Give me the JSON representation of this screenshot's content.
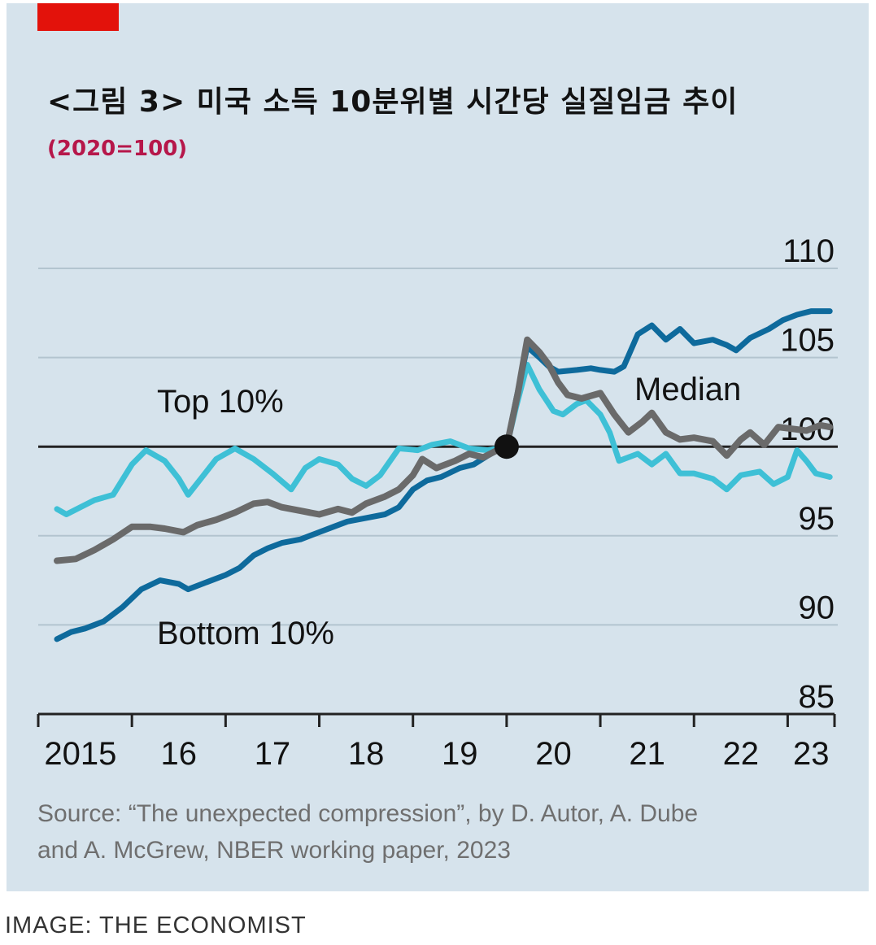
{
  "header": {
    "title": "<그림 3> 미국 소득 10분위별 시간당 실질임금 추이",
    "subtitle": "(2020=100)"
  },
  "colors": {
    "panel": "#d6e3ec",
    "accent_tag": "#e3120b",
    "subtitle": "#b6174a",
    "top10": "#3ec0d6",
    "median": "#6a6a6a",
    "bottom10": "#0e6a9c",
    "grid": "#b3c4cf",
    "axis": "#222222"
  },
  "chart_data": {
    "type": "line",
    "title": "<그림 3> 미국 소득 10분위별 시간당 실질임금 추이",
    "subtitle": "(2020=100)",
    "xlabel": "",
    "ylabel": "",
    "xlim": [
      2015,
      2023.5
    ],
    "ylim": [
      85,
      110
    ],
    "y_ticks": [
      110,
      105,
      100,
      95,
      90,
      85
    ],
    "y_tick_labels": [
      "110",
      "105",
      "100",
      "95",
      "90",
      "85"
    ],
    "x_tick_positions": [
      2015,
      2016,
      2017,
      2018,
      2019,
      2020,
      2021,
      2022,
      2023
    ],
    "x_tick_labels": [
      {
        "x": 2015.45,
        "label": "2015"
      },
      {
        "x": 2016.5,
        "label": "16"
      },
      {
        "x": 2017.5,
        "label": "17"
      },
      {
        "x": 2018.5,
        "label": "18"
      },
      {
        "x": 2019.5,
        "label": "19"
      },
      {
        "x": 2020.5,
        "label": "20"
      },
      {
        "x": 2021.5,
        "label": "21"
      },
      {
        "x": 2022.5,
        "label": "22"
      },
      {
        "x": 2023.25,
        "label": "23"
      }
    ],
    "baseline": 100,
    "marker": {
      "x": 2020.0,
      "y": 100,
      "label": "2020=100"
    },
    "series": [
      {
        "name": "Top 10%",
        "label": "Top 10%",
        "color": "#3ec0d6",
        "points": [
          [
            2015.2,
            96.5
          ],
          [
            2015.3,
            96.2
          ],
          [
            2015.45,
            96.6
          ],
          [
            2015.6,
            97.0
          ],
          [
            2015.8,
            97.3
          ],
          [
            2016.0,
            99.0
          ],
          [
            2016.15,
            99.8
          ],
          [
            2016.35,
            99.2
          ],
          [
            2016.5,
            98.2
          ],
          [
            2016.6,
            97.3
          ],
          [
            2016.75,
            98.3
          ],
          [
            2016.9,
            99.3
          ],
          [
            2017.1,
            99.9
          ],
          [
            2017.3,
            99.3
          ],
          [
            2017.5,
            98.5
          ],
          [
            2017.7,
            97.6
          ],
          [
            2017.85,
            98.8
          ],
          [
            2018.0,
            99.3
          ],
          [
            2018.2,
            99.0
          ],
          [
            2018.35,
            98.2
          ],
          [
            2018.5,
            97.8
          ],
          [
            2018.65,
            98.4
          ],
          [
            2018.85,
            99.9
          ],
          [
            2019.05,
            99.8
          ],
          [
            2019.2,
            100.1
          ],
          [
            2019.4,
            100.3
          ],
          [
            2019.6,
            99.9
          ],
          [
            2019.8,
            99.8
          ],
          [
            2019.9,
            99.9
          ],
          [
            2020.0,
            100.0
          ],
          [
            2020.1,
            102.2
          ],
          [
            2020.22,
            104.6
          ],
          [
            2020.35,
            103.2
          ],
          [
            2020.5,
            102.0
          ],
          [
            2020.6,
            101.8
          ],
          [
            2020.75,
            102.4
          ],
          [
            2020.85,
            102.6
          ],
          [
            2021.0,
            101.8
          ],
          [
            2021.1,
            100.8
          ],
          [
            2021.2,
            99.2
          ],
          [
            2021.4,
            99.6
          ],
          [
            2021.55,
            99.0
          ],
          [
            2021.7,
            99.6
          ],
          [
            2021.85,
            98.5
          ],
          [
            2022.0,
            98.5
          ],
          [
            2022.2,
            98.2
          ],
          [
            2022.35,
            97.6
          ],
          [
            2022.5,
            98.4
          ],
          [
            2022.7,
            98.6
          ],
          [
            2022.85,
            97.9
          ],
          [
            2023.0,
            98.3
          ],
          [
            2023.1,
            99.8
          ],
          [
            2023.2,
            99.2
          ],
          [
            2023.3,
            98.5
          ],
          [
            2023.45,
            98.3
          ]
        ]
      },
      {
        "name": "Median",
        "label": "Median",
        "color": "#6a6a6a",
        "points": [
          [
            2015.2,
            93.6
          ],
          [
            2015.4,
            93.7
          ],
          [
            2015.6,
            94.2
          ],
          [
            2015.8,
            94.8
          ],
          [
            2016.0,
            95.5
          ],
          [
            2016.2,
            95.5
          ],
          [
            2016.35,
            95.4
          ],
          [
            2016.55,
            95.2
          ],
          [
            2016.7,
            95.6
          ],
          [
            2016.9,
            95.9
          ],
          [
            2017.1,
            96.3
          ],
          [
            2017.3,
            96.8
          ],
          [
            2017.45,
            96.9
          ],
          [
            2017.6,
            96.6
          ],
          [
            2017.8,
            96.4
          ],
          [
            2018.0,
            96.2
          ],
          [
            2018.2,
            96.5
          ],
          [
            2018.35,
            96.3
          ],
          [
            2018.5,
            96.8
          ],
          [
            2018.7,
            97.2
          ],
          [
            2018.85,
            97.6
          ],
          [
            2019.0,
            98.4
          ],
          [
            2019.1,
            99.3
          ],
          [
            2019.25,
            98.8
          ],
          [
            2019.45,
            99.2
          ],
          [
            2019.6,
            99.6
          ],
          [
            2019.75,
            99.4
          ],
          [
            2019.9,
            99.8
          ],
          [
            2020.0,
            100.0
          ],
          [
            2020.12,
            103.0
          ],
          [
            2020.22,
            106.0
          ],
          [
            2020.35,
            105.3
          ],
          [
            2020.45,
            104.6
          ],
          [
            2020.55,
            103.6
          ],
          [
            2020.65,
            102.9
          ],
          [
            2020.8,
            102.7
          ],
          [
            2021.0,
            103.0
          ],
          [
            2021.15,
            101.8
          ],
          [
            2021.3,
            100.8
          ],
          [
            2021.45,
            101.4
          ],
          [
            2021.55,
            101.9
          ],
          [
            2021.7,
            100.8
          ],
          [
            2021.85,
            100.4
          ],
          [
            2022.0,
            100.5
          ],
          [
            2022.2,
            100.3
          ],
          [
            2022.35,
            99.5
          ],
          [
            2022.5,
            100.4
          ],
          [
            2022.6,
            100.8
          ],
          [
            2022.75,
            100.1
          ],
          [
            2022.9,
            101.1
          ],
          [
            2023.05,
            101.0
          ],
          [
            2023.2,
            100.9
          ],
          [
            2023.35,
            101.2
          ],
          [
            2023.45,
            101.1
          ]
        ]
      },
      {
        "name": "Bottom 10%",
        "label": "Bottom 10%",
        "color": "#0e6a9c",
        "points": [
          [
            2015.2,
            89.2
          ],
          [
            2015.35,
            89.6
          ],
          [
            2015.5,
            89.8
          ],
          [
            2015.7,
            90.2
          ],
          [
            2015.9,
            91.0
          ],
          [
            2016.1,
            92.0
          ],
          [
            2016.3,
            92.5
          ],
          [
            2016.5,
            92.3
          ],
          [
            2016.6,
            92.0
          ],
          [
            2016.8,
            92.4
          ],
          [
            2017.0,
            92.8
          ],
          [
            2017.15,
            93.2
          ],
          [
            2017.3,
            93.9
          ],
          [
            2017.45,
            94.3
          ],
          [
            2017.6,
            94.6
          ],
          [
            2017.8,
            94.8
          ],
          [
            2018.0,
            95.2
          ],
          [
            2018.15,
            95.5
          ],
          [
            2018.3,
            95.8
          ],
          [
            2018.5,
            96.0
          ],
          [
            2018.7,
            96.2
          ],
          [
            2018.85,
            96.6
          ],
          [
            2019.0,
            97.6
          ],
          [
            2019.15,
            98.1
          ],
          [
            2019.3,
            98.3
          ],
          [
            2019.5,
            98.8
          ],
          [
            2019.65,
            99.0
          ],
          [
            2019.8,
            99.5
          ],
          [
            2019.9,
            99.8
          ],
          [
            2020.0,
            100.0
          ],
          [
            2020.1,
            102.6
          ],
          [
            2020.22,
            105.6
          ],
          [
            2020.35,
            105.0
          ],
          [
            2020.45,
            104.5
          ],
          [
            2020.55,
            104.2
          ],
          [
            2020.75,
            104.3
          ],
          [
            2020.9,
            104.4
          ],
          [
            2021.0,
            104.3
          ],
          [
            2021.15,
            104.2
          ],
          [
            2021.25,
            104.5
          ],
          [
            2021.4,
            106.3
          ],
          [
            2021.55,
            106.8
          ],
          [
            2021.7,
            106.0
          ],
          [
            2021.85,
            106.6
          ],
          [
            2022.0,
            105.8
          ],
          [
            2022.2,
            106.0
          ],
          [
            2022.35,
            105.7
          ],
          [
            2022.45,
            105.4
          ],
          [
            2022.6,
            106.1
          ],
          [
            2022.8,
            106.6
          ],
          [
            2022.95,
            107.1
          ],
          [
            2023.1,
            107.4
          ],
          [
            2023.25,
            107.6
          ],
          [
            2023.45,
            107.6
          ]
        ]
      }
    ],
    "annotations": [
      {
        "text": "Top 10%",
        "series": "Top 10%"
      },
      {
        "text": "Median",
        "series": "Median"
      },
      {
        "text": "Bottom 10%",
        "series": "Bottom 10%"
      }
    ],
    "grid": true
  },
  "footer": {
    "source_line1": "Source: “The unexpected compression”, by D. Autor, A. Dube",
    "source_line2": "and A. McGrew, NBER working paper, 2023",
    "credit": "IMAGE: THE ECONOMIST"
  }
}
